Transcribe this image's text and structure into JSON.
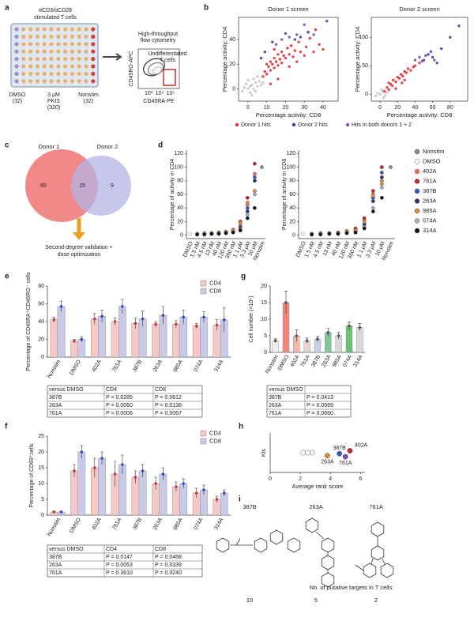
{
  "panels": {
    "a": {
      "letter": "a",
      "title_lines": [
        "αCD3/αCD28",
        "stimulated T cells"
      ],
      "groups": [
        [
          "DMSO",
          "(32)"
        ],
        [
          "3 μM",
          "PKIS",
          "(320)"
        ],
        [
          "Nonstim",
          "(32)"
        ]
      ],
      "flow_title": [
        "High-throughput",
        "flow cytometry"
      ],
      "gate_label": [
        "Undifferentiated",
        "T cells"
      ],
      "xlabel": "CD45RA-PE",
      "ylabel": "CD45RO-APC",
      "ticks": [
        "10³",
        "10⁴",
        "10⁵"
      ]
    },
    "b": {
      "letter": "b",
      "legend": [
        {
          "name": "Donor 1 hits",
          "color": "#e0343a"
        },
        {
          "name": "Donor 2 hits",
          "color": "#3b3fa0"
        },
        {
          "name": "Hits in both donors 1 + 2",
          "color": "#7b4fb0"
        }
      ],
      "charts": [
        {
          "type": "scatter",
          "title": "Donor 1 screen",
          "xlabel": "Percentage activity: CD8",
          "ylabel": "Percentage activity: CD4",
          "xlim": [
            -5,
            48
          ],
          "ylim": [
            -10,
            58
          ],
          "xticks": [
            0,
            10,
            20,
            30,
            40
          ],
          "yticks": [
            0,
            20,
            40
          ],
          "series": [
            {
              "color": "#c8c8c8",
              "x": [
                0,
                2,
                -2,
                4,
                1,
                5,
                3,
                -1,
                6,
                2,
                7,
                0,
                4,
                8,
                -3,
                5,
                3,
                1
              ],
              "y": [
                0,
                3,
                1,
                5,
                -3,
                2,
                8,
                4,
                6,
                -5,
                3,
                7,
                -2,
                5,
                -2,
                10,
                0,
                2
              ]
            },
            {
              "color": "#e0343a",
              "x": [
                8,
                9,
                10,
                11,
                12,
                12,
                13,
                14,
                14,
                15,
                16,
                16,
                17,
                18,
                18,
                19,
                20,
                21,
                22,
                22,
                23,
                24,
                25,
                26,
                27,
                28,
                30,
                31,
                33,
                35,
                38,
                40,
                36,
                14,
                10,
                12,
                16
              ],
              "y": [
                10,
                14,
                12,
                18,
                15,
                22,
                20,
                17,
                25,
                22,
                19,
                28,
                24,
                30,
                21,
                27,
                25,
                33,
                18,
                28,
                35,
                26,
                31,
                22,
                38,
                30,
                27,
                34,
                41,
                30,
                36,
                32,
                48,
                32,
                20,
                4,
                8
              ]
            },
            {
              "color": "#3b3fa0",
              "x": [
                9,
                13,
                20,
                25,
                32,
                42,
                28,
                7
              ],
              "y": [
                30,
                38,
                45,
                40,
                46,
                55,
                42,
                25
              ]
            },
            {
              "color": "#7b4fb0",
              "x": [
                15,
                22,
                26,
                30,
                18,
                35
              ],
              "y": [
                36,
                42,
                44,
                52,
                40,
                44
              ]
            }
          ]
        },
        {
          "type": "scatter",
          "title": "Donor 2 screen",
          "xlabel": "Percentage activity: CD8",
          "ylabel": "Percentage activity: CD4",
          "xlim": [
            -10,
            100
          ],
          "ylim": [
            -12,
            135
          ],
          "xticks": [
            0,
            20,
            40,
            60,
            80
          ],
          "yticks": [
            0,
            50,
            100
          ],
          "series": [
            {
              "color": "#c8c8c8",
              "x": [
                0,
                3,
                -3,
                6,
                2,
                -5,
                8,
                4
              ],
              "y": [
                0,
                5,
                2,
                -2,
                8,
                -3,
                3,
                -6
              ]
            },
            {
              "color": "#e0343a",
              "x": [
                5,
                8,
                10,
                12,
                14,
                15,
                18,
                20,
                22,
                24,
                26,
                28,
                30,
                32,
                18,
                25,
                35,
                38,
                40,
                10,
                28,
                45
              ],
              "y": [
                5,
                12,
                8,
                18,
                15,
                25,
                22,
                30,
                28,
                35,
                32,
                40,
                38,
                45,
                10,
                20,
                42,
                48,
                50,
                20,
                25,
                55
              ]
            },
            {
              "color": "#3b3fa0",
              "x": [
                50,
                55,
                60,
                65,
                70,
                90,
                80,
                58
              ],
              "y": [
                60,
                70,
                65,
                55,
                80,
                120,
                100,
                75
              ]
            },
            {
              "color": "#7b4fb0",
              "x": [
                40,
                48,
                52,
                62,
                45
              ],
              "y": [
                60,
                58,
                68,
                60,
                65
              ]
            }
          ]
        }
      ]
    },
    "c": {
      "letter": "c",
      "sets": [
        "Donor 1",
        "Donor 2"
      ],
      "counts": [
        65,
        15,
        9
      ],
      "note": [
        "Second-degree validation +",
        "dose optimization"
      ]
    },
    "d": {
      "letter": "d",
      "categories": [
        "DMSO",
        "1.5 nM",
        "4.5 nM",
        "13 nM",
        "40 nM",
        "120 nM",
        "360 nM",
        "1.1 μM",
        "3.3 μM",
        "10 μM",
        "Nonstim"
      ],
      "ylim": [
        -5,
        125
      ],
      "yticks": [
        0,
        20,
        40,
        60,
        80,
        100,
        120
      ],
      "legend": [
        {
          "name": "Nonstim",
          "color": "#8a8a8a"
        },
        {
          "name": "DMSO",
          "color": "#ffffff"
        },
        {
          "name": "402A",
          "color": "#e8755c"
        },
        {
          "name": "761A",
          "color": "#c0282d"
        },
        {
          "name": "387B",
          "color": "#2f5cb8"
        },
        {
          "name": "263A",
          "color": "#33337a"
        },
        {
          "name": "985A",
          "color": "#e38a3a"
        },
        {
          "name": "074A",
          "color": "#a8aed0"
        },
        {
          "name": "314A",
          "color": "#111111"
        }
      ],
      "charts": [
        {
          "type": "dot",
          "ylabel": "Percentage of activity in CD4",
          "series_values": [
            [
              null,
              null,
              null,
              null,
              null,
              null,
              null,
              null,
              null,
              null,
              100
            ],
            [
              2,
              null,
              null,
              null,
              null,
              null,
              null,
              null,
              null,
              null,
              null
            ],
            [
              null,
              2,
              2,
              3,
              3,
              4,
              6,
              15,
              45,
              90,
              null
            ],
            [
              null,
              2,
              3,
              3,
              4,
              5,
              8,
              20,
              55,
              105,
              null
            ],
            [
              null,
              2,
              2,
              2,
              3,
              4,
              5,
              12,
              40,
              85,
              null
            ],
            [
              null,
              1,
              2,
              2,
              3,
              3,
              5,
              10,
              35,
              80,
              null
            ],
            [
              null,
              2,
              2,
              3,
              3,
              4,
              7,
              18,
              48,
              65,
              null
            ],
            [
              null,
              1,
              2,
              2,
              2,
              3,
              4,
              8,
              30,
              60,
              null
            ],
            [
              null,
              1,
              1,
              2,
              2,
              3,
              4,
              7,
              25,
              40,
              null
            ]
          ]
        },
        {
          "type": "dot",
          "ylabel": "Percentage of activity in CD8",
          "series_values": [
            [
              null,
              null,
              null,
              null,
              null,
              null,
              null,
              null,
              null,
              null,
              100
            ],
            [
              2,
              null,
              null,
              null,
              null,
              null,
              null,
              null,
              null,
              null,
              null
            ],
            [
              null,
              2,
              2,
              3,
              3,
              5,
              8,
              22,
              60,
              80,
              null
            ],
            [
              null,
              2,
              3,
              3,
              4,
              6,
              10,
              25,
              65,
              100,
              null
            ],
            [
              null,
              2,
              2,
              3,
              3,
              4,
              6,
              18,
              55,
              92,
              null
            ],
            [
              null,
              1,
              2,
              2,
              3,
              4,
              5,
              15,
              50,
              85,
              null
            ],
            [
              null,
              2,
              2,
              3,
              3,
              5,
              7,
              20,
              58,
              75,
              null
            ],
            [
              null,
              1,
              2,
              2,
              2,
              3,
              4,
              12,
              40,
              70,
              null
            ],
            [
              null,
              1,
              1,
              2,
              2,
              3,
              4,
              10,
              35,
              55,
              null
            ]
          ]
        }
      ]
    },
    "e": {
      "letter": "e",
      "type": "bar",
      "ylabel": "Percentage of CD45RA⁺CD45RO⁻ cells",
      "categories": [
        "Nonstim",
        "DMSO",
        "402A",
        "761A",
        "387B",
        "263A",
        "985A",
        "074A",
        "314A"
      ],
      "ylim": [
        0,
        80
      ],
      "yticks": [
        0,
        20,
        40,
        60,
        80
      ],
      "series": [
        {
          "name": "CD4",
          "color": "#f6c9c6",
          "dot": "#c03a3a",
          "values": [
            42,
            18,
            43,
            40,
            38,
            37,
            37,
            35,
            36
          ],
          "errors": [
            3,
            2,
            6,
            4,
            6,
            3,
            4,
            3,
            6
          ]
        },
        {
          "name": "CD8",
          "color": "#c9c9ea",
          "dot": "#3b4aa8",
          "values": [
            57,
            20,
            46,
            57,
            43,
            47,
            45,
            45,
            42
          ],
          "errors": [
            6,
            3,
            7,
            8,
            9,
            10,
            8,
            6,
            14
          ]
        }
      ],
      "table": {
        "header": [
          "versus DMSO",
          "CD4",
          "CD8"
        ],
        "rows": [
          [
            "387B",
            "P = 0.0285",
            "P = 0.0612"
          ],
          [
            "263A",
            "P = 0.0060",
            "P = 0.0138"
          ],
          [
            "761A",
            "P = 0.0006",
            "P = 0.0067"
          ]
        ]
      }
    },
    "g": {
      "letter": "g",
      "type": "bar",
      "ylabel": "Cell number (×10⁶)",
      "categories": [
        "Nonstim",
        "DMSO",
        "402A",
        "761A",
        "387B",
        "263A",
        "985A",
        "074A",
        "314A"
      ],
      "ylim": [
        0,
        20
      ],
      "yticks": [
        0,
        5,
        10,
        15,
        20
      ],
      "series": [
        {
          "color": "#dddddd",
          "dot": "#555555",
          "colors": [
            "#eeeeee",
            "#f0857c",
            "#f5b6aa",
            "#ead2d2",
            "#c9cde8",
            "#7fc79a",
            "#d9d9d9",
            "#6dc07a",
            "#d9d9d9"
          ],
          "values": [
            3.5,
            15,
            5,
            3.5,
            4,
            6,
            5,
            8,
            7.5
          ],
          "errors": [
            0.6,
            3.5,
            1.8,
            0.8,
            0.8,
            1.2,
            1,
            1.2,
            1.2
          ]
        }
      ],
      "table": {
        "header": [
          "versus DMSO"
        ],
        "rows": [
          [
            "387B",
            "P = 0.0413"
          ],
          [
            "263A",
            "P = 0.0569"
          ],
          [
            "761A",
            "P = 0.0660"
          ]
        ]
      }
    },
    "f": {
      "letter": "f",
      "type": "bar",
      "ylabel": "Percentage of CD69⁺cells",
      "categories": [
        "Nonstim",
        "DMSO",
        "402A",
        "761A",
        "387B",
        "263A",
        "985A",
        "074A",
        "314A"
      ],
      "ylim": [
        0,
        25
      ],
      "yticks": [
        0,
        5,
        10,
        15,
        20,
        25
      ],
      "series": [
        {
          "name": "CD4",
          "color": "#f6c9c6",
          "dot": "#c03a3a",
          "values": [
            1,
            14,
            15,
            13,
            12,
            10,
            9,
            7,
            5
          ],
          "errors": [
            0.3,
            2,
            3,
            4,
            2,
            2,
            1.5,
            1.5,
            1
          ]
        },
        {
          "name": "CD8",
          "color": "#c9c9ea",
          "dot": "#3b4aa8",
          "values": [
            1,
            20,
            18,
            16,
            14,
            13,
            10,
            8,
            7
          ],
          "errors": [
            0.3,
            2,
            2,
            3,
            2,
            2,
            1.5,
            1.5,
            1
          ]
        }
      ],
      "table": {
        "header": [
          "versus DMSO",
          "CD4",
          "CD8"
        ],
        "rows": [
          [
            "387B",
            "P = 0.0147",
            "P = 0.0468"
          ],
          [
            "263A",
            "P = 0.0053",
            "P = 0.0339"
          ],
          [
            "761A",
            "P = 0.3610",
            "P = 0.0240"
          ]
        ]
      }
    },
    "h": {
      "letter": "h",
      "type": "scatter",
      "xlabel": "Average rank score",
      "ylabel": "Kts",
      "xlim": [
        0,
        6.3
      ],
      "xticks": [
        0,
        2,
        4,
        6
      ],
      "ylim": [
        0,
        2
      ],
      "x": [
        2.2,
        2.5,
        2.8,
        3.8,
        4.6,
        5.3,
        5.0
      ],
      "y": [
        1,
        1,
        1,
        0.85,
        0.95,
        1.1,
        0.8
      ],
      "colors": [
        "#ffffff",
        "#ffffff",
        "#ffffff",
        "#e38a3a",
        "#2f5cb8",
        "#c0282d",
        "#7b4fb0"
      ],
      "labels": [
        null,
        null,
        null,
        "263A",
        "387B",
        "402A",
        "761A"
      ]
    },
    "i": {
      "letter": "i",
      "names": [
        "387B",
        "263A",
        "761A"
      ],
      "targets_label": "No. of putative targets in T cells:",
      "targets": [
        10,
        5,
        2
      ]
    }
  }
}
